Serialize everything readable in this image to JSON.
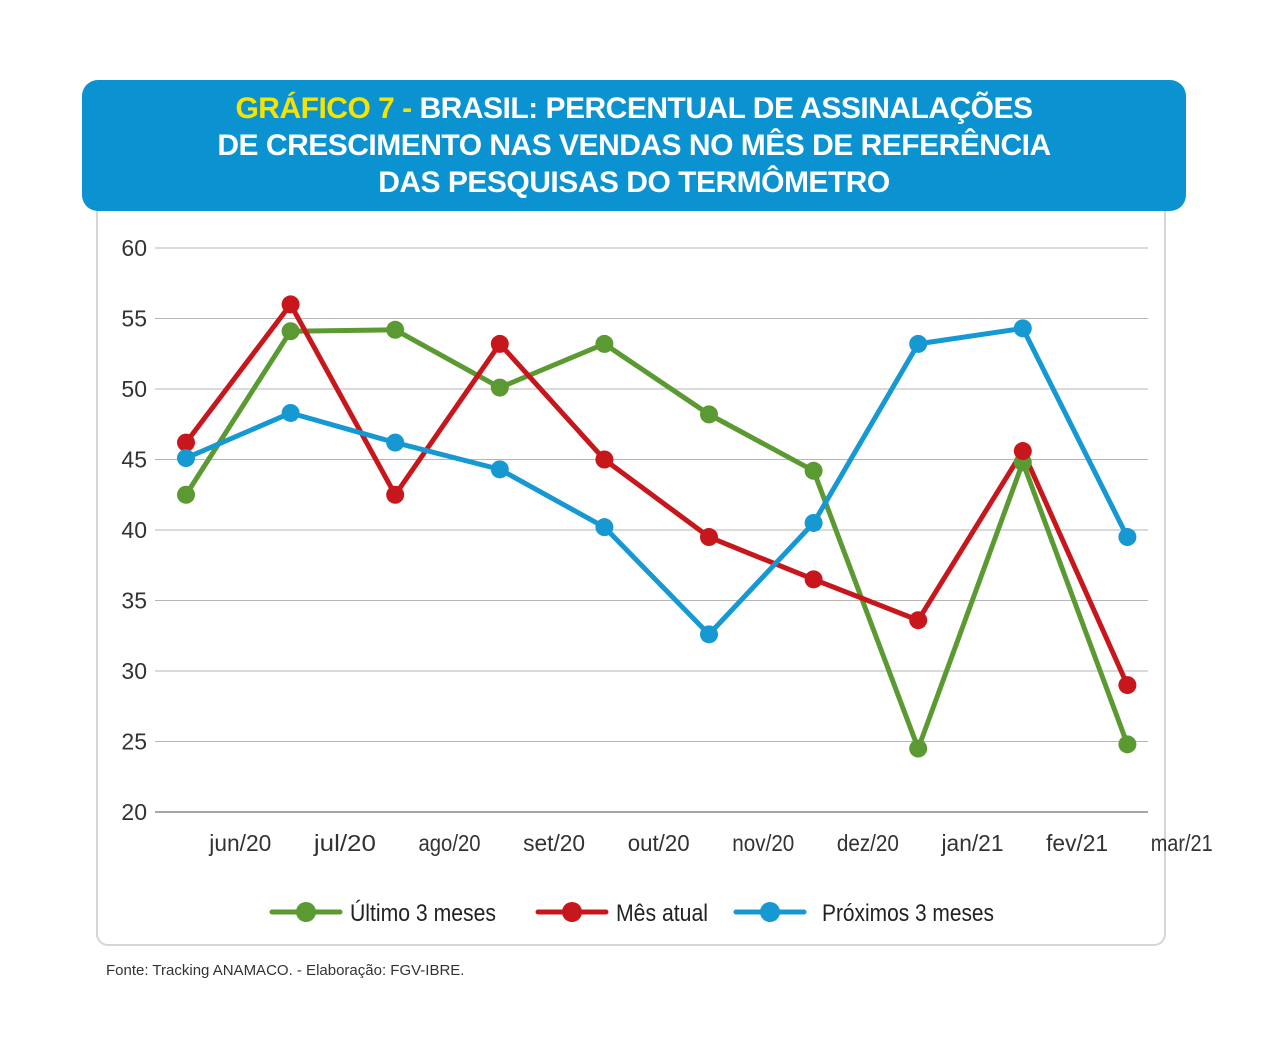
{
  "header": {
    "title_prefix": "GRÁFICO 7 -",
    "title_line1": "BRASIL: PERCENTUAL DE ASSINALAÇÕES",
    "title_line2": "DE CRESCIMENTO NAS VENDAS NO MÊS DE REFERÊNCIA",
    "title_line3": "DAS PESQUISAS DO TERMÔMETRO"
  },
  "source": "Fonte: Tracking ANAMACO. - Elaboração: FGV-IBRE.",
  "colors": {
    "header_bg": "#0a93d0",
    "title_prefix": "#f6e300"
  },
  "chart_data": {
    "type": "line",
    "ylim": [
      20,
      60
    ],
    "yticks": [
      20,
      25,
      30,
      35,
      40,
      45,
      50,
      55,
      60
    ],
    "x_points": [
      "",
      "",
      "",
      "",
      "",
      "",
      "",
      "",
      "",
      ""
    ],
    "categories": [
      "jun/20",
      "jul/20",
      "ago/20",
      "set/20",
      "out/20",
      "nov/20",
      "dez/20",
      "jan/21",
      "fev/21",
      "mar/21"
    ],
    "grid": true,
    "legend_position": "bottom",
    "series": [
      {
        "name": "Último 3 meses",
        "color": "#5b9a32",
        "values": [
          42.5,
          54.1,
          54.2,
          50.1,
          53.2,
          48.2,
          44.2,
          24.5,
          44.8,
          24.8
        ]
      },
      {
        "name": "Mês atual",
        "color": "#c8171c",
        "values": [
          46.2,
          56.0,
          42.5,
          53.2,
          45.0,
          39.5,
          36.5,
          33.6,
          45.6,
          29.0
        ]
      },
      {
        "name": "Próximos 3 meses",
        "color": "#1698d3",
        "values": [
          45.1,
          48.3,
          46.2,
          44.3,
          40.2,
          32.6,
          40.5,
          53.2,
          54.3,
          39.5
        ]
      }
    ]
  }
}
